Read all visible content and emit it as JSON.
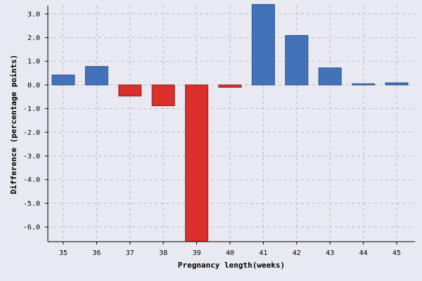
{
  "chart_data": {
    "type": "bar",
    "title": "",
    "xlabel": "Pregnancy length(weeks)",
    "ylabel": "Difference (percentage points)",
    "categories": [
      "35",
      "36",
      "37",
      "38",
      "39",
      "40",
      "41",
      "42",
      "43",
      "44",
      "45"
    ],
    "values": [
      0.42,
      0.78,
      -0.47,
      -0.88,
      -6.62,
      -0.1,
      3.4,
      2.09,
      0.72,
      0.05,
      0.09
    ],
    "ylim": [
      -6.62,
      3.35
    ],
    "yticks": [
      3.0,
      2.0,
      1.0,
      0.0,
      -1.0,
      -2.0,
      -3.0,
      -4.0,
      -5.0,
      -6.0
    ],
    "ytick_labels": [
      "3.0",
      "2.0",
      "1.0",
      "0.0",
      "-1.0",
      "-2.0",
      "-3.0",
      "-4.0",
      "-5.0",
      "-6.0"
    ],
    "grid": true,
    "colors": {
      "positive_fill": "#4472b8",
      "positive_edge": "#2c5591",
      "negative_fill": "#d9302b",
      "negative_edge": "#8e1f1c",
      "background": "#e9e9f1",
      "grid": "#b9b9c1"
    }
  }
}
